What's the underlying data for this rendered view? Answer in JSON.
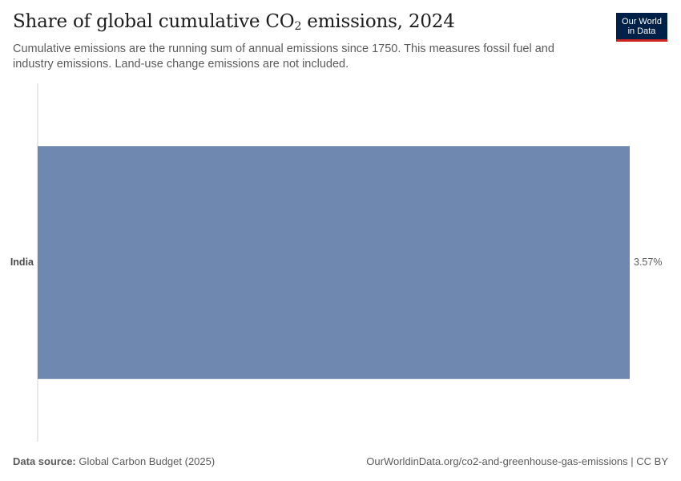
{
  "header": {
    "title_main": "Share of global cumulative CO",
    "title_sub": "2",
    "title_tail": " emissions, 2024",
    "subtitle": "Cumulative emissions are the running sum of annual emissions since 1750. This measures fossil fuel and industry emissions. Land-use change emissions are not included."
  },
  "logo": {
    "line1": "Our World",
    "line2": "in Data"
  },
  "footer": {
    "source_label": "Data source:",
    "source_text": " Global Carbon Budget (2025)",
    "url_license": "OurWorldinData.org/co2-and-greenhouse-gas-emissions | CC BY"
  },
  "colors": {
    "bar": "#6f88b0",
    "axis": "#d0d0d0",
    "logo_bg": "#002147",
    "logo_accent": "#ce261e"
  },
  "chart_data": {
    "type": "bar",
    "orientation": "horizontal",
    "categories": [
      "India"
    ],
    "values": [
      3.57
    ],
    "value_labels": [
      "3.57%"
    ],
    "unit": "%",
    "xlim": [
      0,
      3.57
    ],
    "grid": false
  }
}
